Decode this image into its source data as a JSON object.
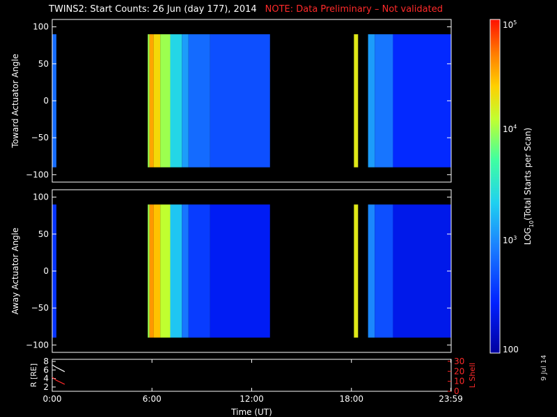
{
  "header": {
    "title": "TWINS2: Start Counts: 26 Jun (day 177), 2014",
    "note": "NOTE: Data Preliminary – Not validated",
    "note_color": "#ff2a2a",
    "side_date": "9 Jul 14"
  },
  "chart_data": [
    {
      "type": "heatmap",
      "name": "toward-panel",
      "ylabel": "Toward Actuator Angle",
      "ylim": [
        -110,
        110
      ],
      "yticks": [
        "100",
        "50",
        "0",
        "−50",
        "−100"
      ],
      "ytick_values": [
        100,
        50,
        0,
        -50,
        -100
      ],
      "x_range_hours": [
        0,
        24
      ],
      "angle_range": [
        -90,
        90
      ],
      "data_bands": [
        {
          "start": 0.0,
          "end": 0.25,
          "level": 2.85
        },
        {
          "start": 5.75,
          "end": 5.85,
          "level": 4.0
        },
        {
          "start": 5.85,
          "end": 6.1,
          "level": 4.55
        },
        {
          "start": 6.1,
          "end": 6.5,
          "level": 4.35
        },
        {
          "start": 6.5,
          "end": 7.1,
          "level": 4.0
        },
        {
          "start": 7.1,
          "end": 7.8,
          "level": 3.4
        },
        {
          "start": 7.8,
          "end": 8.2,
          "level": 3.1
        },
        {
          "start": 8.2,
          "end": 9.5,
          "level": 2.85
        },
        {
          "start": 9.5,
          "end": 13.1,
          "level": 2.7
        },
        {
          "start": 18.15,
          "end": 18.4,
          "level": 4.25
        },
        {
          "start": 19.0,
          "end": 19.4,
          "level": 3.1
        },
        {
          "start": 19.4,
          "end": 20.5,
          "level": 2.9
        },
        {
          "start": 20.5,
          "end": 24.0,
          "level": 2.5
        }
      ]
    },
    {
      "type": "heatmap",
      "name": "away-panel",
      "ylabel": "Away Actuator Angle",
      "ylim": [
        -110,
        110
      ],
      "yticks": [
        "100",
        "50",
        "0",
        "−50",
        "−100"
      ],
      "ytick_values": [
        100,
        50,
        0,
        -50,
        -100
      ],
      "x_range_hours": [
        0,
        24
      ],
      "angle_range": [
        -90,
        90
      ],
      "data_bands": [
        {
          "start": 0.0,
          "end": 0.25,
          "level": 2.55
        },
        {
          "start": 5.75,
          "end": 5.85,
          "level": 4.0
        },
        {
          "start": 5.85,
          "end": 6.1,
          "level": 4.6
        },
        {
          "start": 6.1,
          "end": 6.5,
          "level": 4.45
        },
        {
          "start": 6.5,
          "end": 7.1,
          "level": 4.1
        },
        {
          "start": 7.1,
          "end": 7.8,
          "level": 3.3
        },
        {
          "start": 7.8,
          "end": 8.2,
          "level": 2.9
        },
        {
          "start": 8.2,
          "end": 9.5,
          "level": 2.6
        },
        {
          "start": 9.5,
          "end": 13.1,
          "level": 2.4
        },
        {
          "start": 18.15,
          "end": 18.4,
          "level": 4.25
        },
        {
          "start": 19.0,
          "end": 19.4,
          "level": 3.0
        },
        {
          "start": 19.4,
          "end": 20.5,
          "level": 2.7
        },
        {
          "start": 20.5,
          "end": 24.0,
          "level": 2.35
        }
      ]
    },
    {
      "type": "line",
      "name": "orbit-panel",
      "ylabel_left": "R [RE]",
      "ylabel_right": "L Shell",
      "left_yticks": [
        "8",
        "6",
        "4",
        "2"
      ],
      "left_ytick_values": [
        8,
        6,
        4,
        2
      ],
      "right_yticks": [
        "30",
        "20",
        "10",
        "0"
      ],
      "right_ytick_values": [
        30,
        20,
        10,
        0
      ],
      "right_axis_color": "#ff2a2a",
      "xlabel": "Time (UT)",
      "xticks": [
        "0:00",
        "6:00",
        "12:00",
        "18:00",
        "23:59"
      ],
      "xtick_values": [
        0,
        6,
        12,
        18,
        23.98
      ],
      "series": [
        {
          "axis": "left",
          "color": "#ffffff",
          "x": [
            0.0,
            0.25,
            0.5,
            0.75
          ],
          "y": [
            7.2,
            6.6,
            6.1,
            5.6
          ]
        },
        {
          "axis": "right",
          "color": "#ff2a2a",
          "x": [
            0.0,
            0.25,
            0.5,
            0.75
          ],
          "y": [
            14,
            11,
            9,
            7
          ]
        }
      ]
    }
  ],
  "colorbar": {
    "label": "LOG10(Total Starts per Scan)",
    "label_main": "LOG",
    "label_sub": "10",
    "label_rest": "(Total Starts per Scan)",
    "tick_top": "10",
    "tick_top_exp": "5",
    "tick_mid": "10",
    "tick_mid_exp": "4",
    "tick_low": "10",
    "tick_low_exp": "3",
    "tick_bottom": "100",
    "log_range": [
      2,
      5
    ]
  }
}
